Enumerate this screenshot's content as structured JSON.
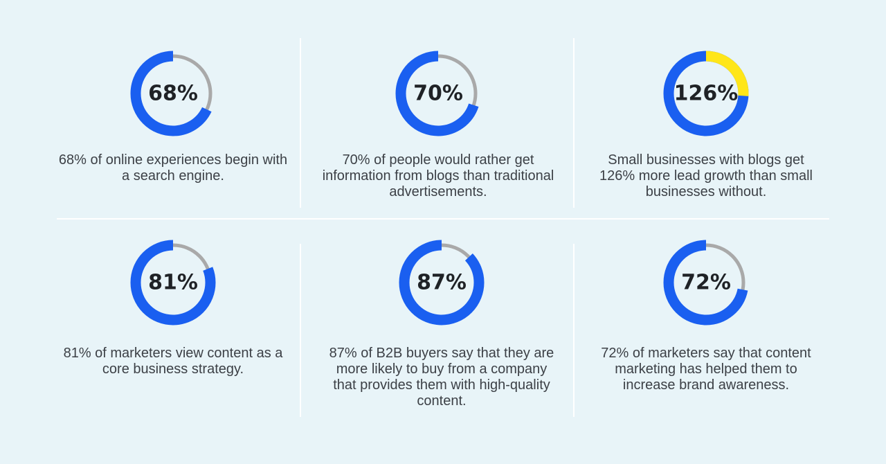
{
  "colors": {
    "background": "#e8f4f8",
    "ring_primary": "#1a5ff0",
    "ring_track": "#a9a9a9",
    "ring_highlight": "#ffe619"
  },
  "stats": [
    {
      "value": 68,
      "label": "68%",
      "text": "68% of online experiences begin with a search engine."
    },
    {
      "value": 70,
      "label": "70%",
      "text": "70% of people would rather get information from blogs than traditional advertisements."
    },
    {
      "value": 126,
      "label": "126%",
      "text": "Small businesses with blogs get 126% more lead growth than small businesses without."
    },
    {
      "value": 81,
      "label": "81%",
      "text": "81% of marketers view content as a core business strategy."
    },
    {
      "value": 87,
      "label": "87%",
      "text": "87% of B2B buyers say that they are more likely to buy from a company that provides them with high-quality content."
    },
    {
      "value": 72,
      "label": "72%",
      "text": "72% of marketers say that content marketing has helped them to increase brand awareness."
    }
  ]
}
